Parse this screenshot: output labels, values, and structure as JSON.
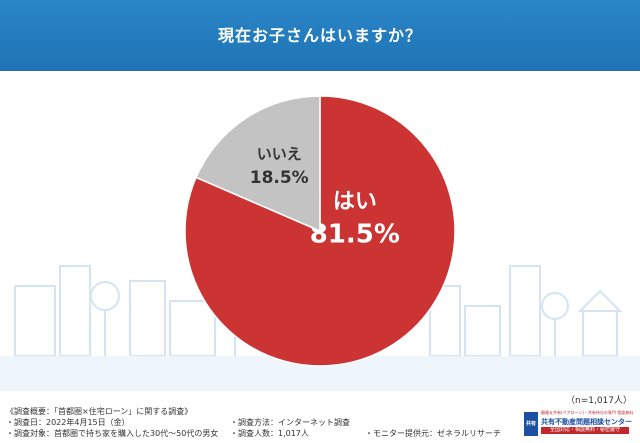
{
  "header": {
    "title": "現在お子さんはいますか？"
  },
  "chart_data": {
    "type": "pie",
    "title": "現在お子さんはいますか？",
    "slices": [
      {
        "label": "はい",
        "value": 81.5,
        "value_label": "81.5%",
        "color": "#cc3333"
      },
      {
        "label": "いいえ",
        "value": 18.5,
        "value_label": "18.5%",
        "color": "#c3c3c3"
      }
    ]
  },
  "sample_note": "（n=1,017人）",
  "footer": {
    "survey_title": "《調査概要：「首都圏×住宅ローン」に関する調査》",
    "survey_date": "・調査日：2022年4月15日（金）",
    "survey_target": "・調査対象：首都圏で持ち家を購入した30代～50代の男女",
    "survey_method": "・調査方法：インターネット調査",
    "survey_count": "・調査人数：1,017人",
    "monitor": "・モニター提供元：ゼネラルリサーチ"
  },
  "logo": {
    "badge": "共有",
    "tagline": "離婚＆共有(ペアローン)・共有持分の専門 相談無料",
    "name": "共有不動産問題相談センター",
    "sub": "全国対応・相談無料・秘密厳守"
  }
}
